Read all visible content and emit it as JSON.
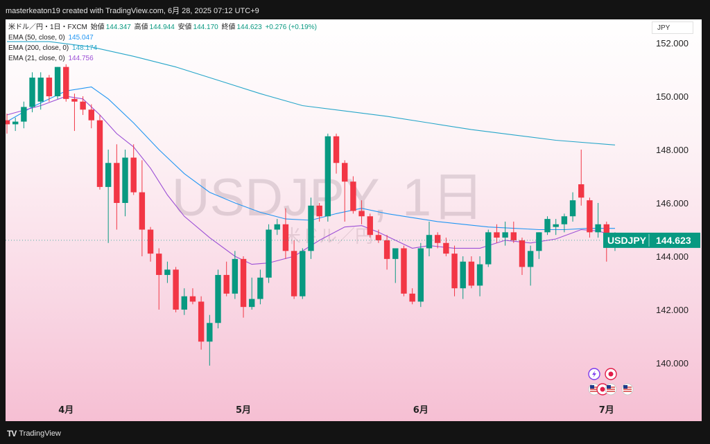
{
  "header": {
    "text": "masterkeaton19 created with TradingView.com, 6月 28, 2025 07:12 UTC+9"
  },
  "footer": {
    "brand": "TradingView"
  },
  "legend": {
    "symbol": "米ドル／円・1日・FXCM",
    "ohlc": [
      {
        "label": "始値",
        "value": "144.347"
      },
      {
        "label": "高値",
        "value": "144.944"
      },
      {
        "label": "安値",
        "value": "144.170"
      },
      {
        "label": "終値",
        "value": "144.623"
      }
    ],
    "change": "+0.276 (+0.19%)",
    "indicators": [
      {
        "label": "EMA (50, close, 0)",
        "value": "145.047"
      },
      {
        "label": "EMA (200, close, 0)",
        "value": "148.174"
      },
      {
        "label": "EMA (21, close, 0)",
        "value": "144.756"
      }
    ]
  },
  "currency": "JPY",
  "watermark": {
    "main": "USDJPY, 1日",
    "sub": "米ドル／円"
  },
  "price_tag": {
    "symbol": "USDJPY",
    "price": "144.623"
  },
  "colors": {
    "up": "#089981",
    "down": "#f23645",
    "ema50": "#2196f3",
    "ema200": "#26a6c9",
    "ema21": "#9c4fd6"
  },
  "chart_data": {
    "type": "candlestick",
    "y_ticks": [
      "152.000",
      "150.000",
      "148.000",
      "146.000",
      "144.000",
      "142.000",
      "140.000"
    ],
    "ylim": [
      138.8,
      153.6
    ],
    "x_labels": [
      {
        "label": "4月",
        "index": 7
      },
      {
        "label": "5月",
        "index": 28
      },
      {
        "label": "6月",
        "index": 49
      },
      {
        "label": "7月",
        "index": 71
      }
    ],
    "candles": [
      [
        149.1,
        149.35,
        148.6,
        148.95
      ],
      [
        148.95,
        149.2,
        148.7,
        149.05
      ],
      [
        149.05,
        149.8,
        148.8,
        149.6
      ],
      [
        149.6,
        150.9,
        149.4,
        150.7
      ],
      [
        149.8,
        150.9,
        149.5,
        150.7
      ],
      [
        150.7,
        150.8,
        149.8,
        150.0
      ],
      [
        150.0,
        151.1,
        149.9,
        151.1
      ],
      [
        151.1,
        151.2,
        149.8,
        149.9
      ],
      [
        149.9,
        150.1,
        148.7,
        149.8
      ],
      [
        149.8,
        150.0,
        149.3,
        149.5
      ],
      [
        149.5,
        149.7,
        148.8,
        149.1
      ],
      [
        149.1,
        149.3,
        146.5,
        146.6
      ],
      [
        146.6,
        148.0,
        144.5,
        147.5
      ],
      [
        147.5,
        148.2,
        145.0,
        146.0
      ],
      [
        146.0,
        148.0,
        145.5,
        147.7
      ],
      [
        147.7,
        148.2,
        146.3,
        146.4
      ],
      [
        146.4,
        147.6,
        144.0,
        145.0
      ],
      [
        145.0,
        145.1,
        143.8,
        144.1
      ],
      [
        144.1,
        144.3,
        142.0,
        143.3
      ],
      [
        143.3,
        143.8,
        143.0,
        143.5
      ],
      [
        143.5,
        143.6,
        141.9,
        142.0
      ],
      [
        142.0,
        142.8,
        141.8,
        142.5
      ],
      [
        142.5,
        142.8,
        142.2,
        142.3
      ],
      [
        142.3,
        142.5,
        140.5,
        140.8
      ],
      [
        140.8,
        141.8,
        139.9,
        141.5
      ],
      [
        141.5,
        143.5,
        141.3,
        143.3
      ],
      [
        143.3,
        143.8,
        142.5,
        142.6
      ],
      [
        142.6,
        144.2,
        142.4,
        143.9
      ],
      [
        143.9,
        144.0,
        141.7,
        142.1
      ],
      [
        142.1,
        143.2,
        142.0,
        142.4
      ],
      [
        142.4,
        143.5,
        142.2,
        143.2
      ],
      [
        143.2,
        145.2,
        143.0,
        145.0
      ],
      [
        145.0,
        145.4,
        144.8,
        145.2
      ],
      [
        145.2,
        145.8,
        143.9,
        144.2
      ],
      [
        144.2,
        144.6,
        142.4,
        142.5
      ],
      [
        142.5,
        144.3,
        142.4,
        144.2
      ],
      [
        144.2,
        146.2,
        143.9,
        145.9
      ],
      [
        145.9,
        146.0,
        145.3,
        145.5
      ],
      [
        145.5,
        148.6,
        145.3,
        148.5
      ],
      [
        148.5,
        148.6,
        147.1,
        147.5
      ],
      [
        147.5,
        147.6,
        145.3,
        146.8
      ],
      [
        146.8,
        147.0,
        145.6,
        145.7
      ],
      [
        145.7,
        146.1,
        145.2,
        145.5
      ],
      [
        145.5,
        145.6,
        144.7,
        144.8
      ],
      [
        144.8,
        145.0,
        144.5,
        144.6
      ],
      [
        144.6,
        144.8,
        143.5,
        143.9
      ],
      [
        143.9,
        144.2,
        143.0,
        144.3
      ],
      [
        144.3,
        144.4,
        142.5,
        142.6
      ],
      [
        142.6,
        142.8,
        142.2,
        142.3
      ],
      [
        142.3,
        144.5,
        142.1,
        144.3
      ],
      [
        144.3,
        145.3,
        144.0,
        144.8
      ],
      [
        144.8,
        144.9,
        144.3,
        144.5
      ],
      [
        144.5,
        144.7,
        144.0,
        144.1
      ],
      [
        144.1,
        144.4,
        142.5,
        142.8
      ],
      [
        142.8,
        144.0,
        142.4,
        143.8
      ],
      [
        143.8,
        144.0,
        142.8,
        142.9
      ],
      [
        142.9,
        144.0,
        142.5,
        143.7
      ],
      [
        143.7,
        145.0,
        143.6,
        144.9
      ],
      [
        144.9,
        145.2,
        144.5,
        144.7
      ],
      [
        144.7,
        145.3,
        144.4,
        144.9
      ],
      [
        144.9,
        145.3,
        144.5,
        144.6
      ],
      [
        144.6,
        144.7,
        143.3,
        143.6
      ],
      [
        143.6,
        144.4,
        142.9,
        144.2
      ],
      [
        144.2,
        144.9,
        143.9,
        144.9
      ],
      [
        144.9,
        145.5,
        144.8,
        145.4
      ],
      [
        145.1,
        145.4,
        144.8,
        145.2
      ],
      [
        145.2,
        145.6,
        144.9,
        145.5
      ],
      [
        145.5,
        146.4,
        145.3,
        146.1
      ],
      [
        146.7,
        148.0,
        145.9,
        146.2
      ],
      [
        146.1,
        146.2,
        144.7,
        144.9
      ],
      [
        144.9,
        146.0,
        144.7,
        145.2
      ],
      [
        145.2,
        145.3,
        143.8,
        144.4
      ],
      [
        144.4,
        144.9,
        144.2,
        144.6
      ]
    ],
    "ema50": [
      [
        0,
        149.05
      ],
      [
        3,
        149.6
      ],
      [
        7,
        150.2
      ],
      [
        10,
        150.35
      ],
      [
        12,
        149.9
      ],
      [
        15,
        149.0
      ],
      [
        18,
        148.0
      ],
      [
        21,
        147.1
      ],
      [
        24,
        146.4
      ],
      [
        27,
        146.0
      ],
      [
        30,
        145.65
      ],
      [
        33,
        145.4
      ],
      [
        36,
        145.35
      ],
      [
        39,
        145.6
      ],
      [
        42,
        145.8
      ],
      [
        45,
        145.6
      ],
      [
        48,
        145.45
      ],
      [
        51,
        145.3
      ],
      [
        54,
        145.2
      ],
      [
        57,
        145.1
      ],
      [
        60,
        145.05
      ],
      [
        63,
        145.0
      ],
      [
        66,
        145.0
      ],
      [
        69,
        145.05
      ],
      [
        72,
        145.047
      ]
    ],
    "ema200": [
      [
        0,
        152.05
      ],
      [
        5,
        152.05
      ],
      [
        10,
        151.85
      ],
      [
        15,
        151.5
      ],
      [
        20,
        151.1
      ],
      [
        25,
        150.6
      ],
      [
        30,
        150.1
      ],
      [
        35,
        149.65
      ],
      [
        40,
        149.45
      ],
      [
        45,
        149.25
      ],
      [
        50,
        149.0
      ],
      [
        55,
        148.75
      ],
      [
        60,
        148.55
      ],
      [
        65,
        148.35
      ],
      [
        72,
        148.174
      ]
    ],
    "ema21": [
      [
        0,
        149.3
      ],
      [
        4,
        149.65
      ],
      [
        7,
        150.0
      ],
      [
        9,
        149.9
      ],
      [
        11,
        149.3
      ],
      [
        13,
        148.6
      ],
      [
        15,
        148.1
      ],
      [
        17,
        147.3
      ],
      [
        19,
        146.3
      ],
      [
        21,
        145.5
      ],
      [
        24,
        144.7
      ],
      [
        27,
        144.0
      ],
      [
        29,
        143.7
      ],
      [
        31,
        143.75
      ],
      [
        34,
        144.0
      ],
      [
        37,
        144.6
      ],
      [
        40,
        145.1
      ],
      [
        42,
        145.15
      ],
      [
        44,
        144.9
      ],
      [
        46,
        144.6
      ],
      [
        48,
        144.3
      ],
      [
        50,
        144.4
      ],
      [
        53,
        144.3
      ],
      [
        56,
        144.3
      ],
      [
        59,
        144.6
      ],
      [
        62,
        144.5
      ],
      [
        65,
        144.65
      ],
      [
        68,
        145.0
      ],
      [
        70,
        144.95
      ],
      [
        72,
        144.756
      ]
    ]
  }
}
